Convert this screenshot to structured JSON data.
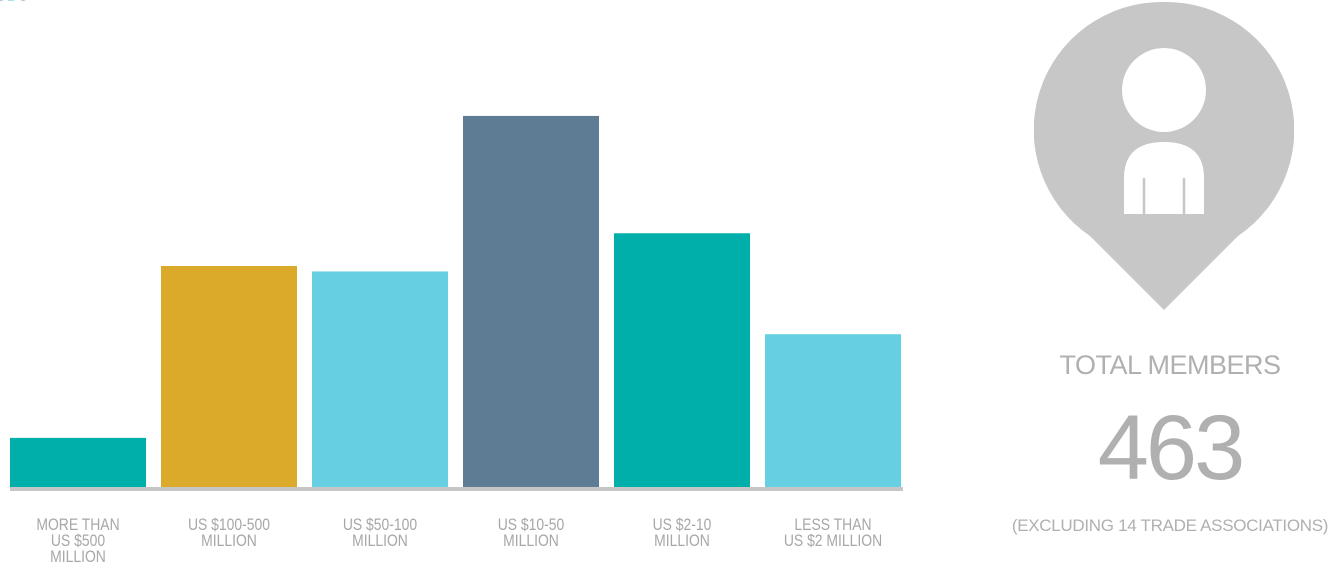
{
  "chart_data": {
    "type": "bar",
    "categories": [
      [
        "MORE THAN",
        "US $500",
        "MILLION"
      ],
      [
        "US $100-500",
        "MILLION"
      ],
      [
        "US $50-100",
        "MILLION"
      ],
      [
        "US $10-50",
        "MILLION"
      ],
      [
        "US $2-10",
        "MILLION"
      ],
      [
        "LESS THAN",
        "US $2 MILLION"
      ]
    ],
    "values": [
      18,
      81,
      79,
      136,
      93,
      56
    ],
    "colors": [
      "#00afaa",
      "#dcaa2b",
      "#66d0e2",
      "#5e7c93",
      "#00afaa",
      "#66d0e2"
    ],
    "value_labels": [
      "18",
      "81",
      "79",
      "136",
      "93",
      "56"
    ],
    "title": "",
    "xlabel": "",
    "ylabel": "",
    "ylim": [
      0,
      151
    ],
    "grid": false,
    "legend": "none",
    "baseline_color": "#c6c6c6"
  },
  "summary": {
    "icon": "member-pin-icon",
    "icon_color": "#c8c7c8",
    "total_label": "TOTAL MEMBERS",
    "total_value": "463",
    "note": "(EXCLUDING 14 TRADE ASSOCIATIONS)"
  }
}
